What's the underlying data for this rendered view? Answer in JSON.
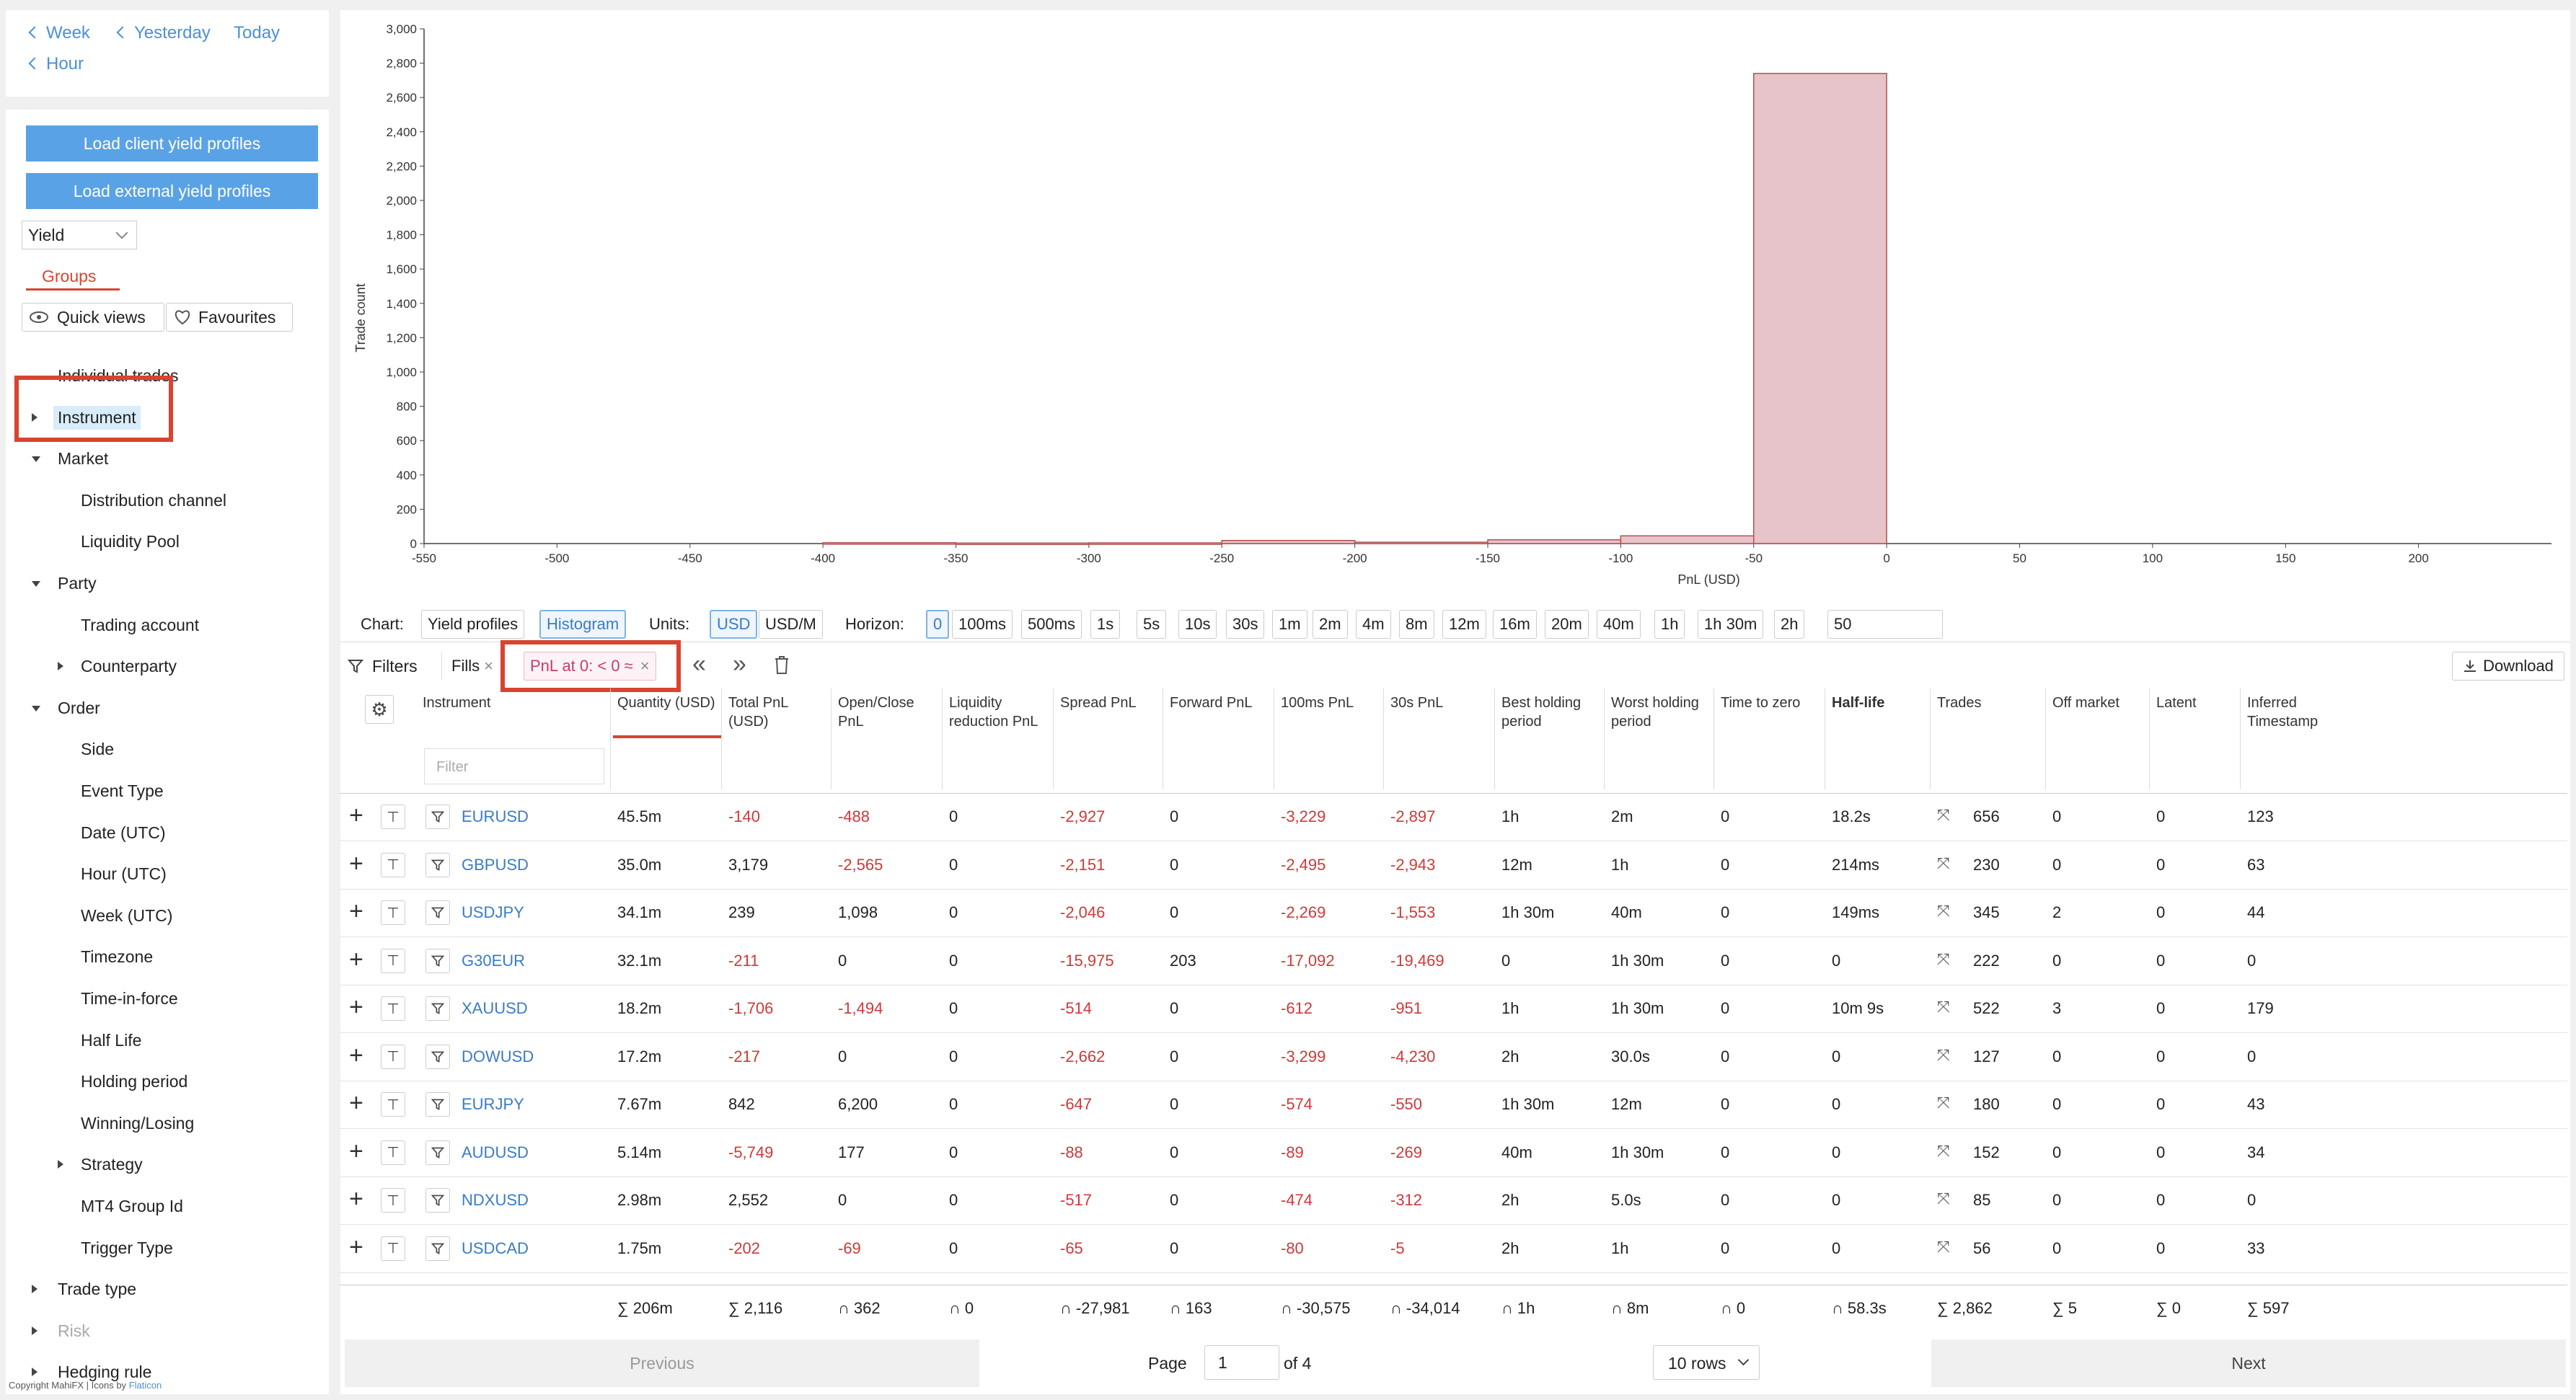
{
  "nav": {
    "week": "Week",
    "yesterday": "Yesterday",
    "today": "Today",
    "hour": "Hour"
  },
  "sidebar": {
    "load_client": "Load client yield profiles",
    "load_external": "Load external yield profiles",
    "metric_select": "Yield",
    "groups_tab": "Groups",
    "quick_views": "Quick views",
    "favourites": "Favourites",
    "tree": [
      {
        "label": "Individual trades"
      },
      {
        "label": "Instrument"
      },
      {
        "label": "Market"
      },
      {
        "label": "Distribution channel"
      },
      {
        "label": "Liquidity Pool"
      },
      {
        "label": "Party"
      },
      {
        "label": "Trading account"
      },
      {
        "label": "Counterparty"
      },
      {
        "label": "Order"
      },
      {
        "label": "Side"
      },
      {
        "label": "Event Type"
      },
      {
        "label": "Date (UTC)"
      },
      {
        "label": "Hour (UTC)"
      },
      {
        "label": "Week (UTC)"
      },
      {
        "label": "Timezone"
      },
      {
        "label": "Time-in-force"
      },
      {
        "label": "Half Life"
      },
      {
        "label": "Holding period"
      },
      {
        "label": "Winning/Losing"
      },
      {
        "label": "Strategy"
      },
      {
        "label": "MT4 Group Id"
      },
      {
        "label": "Trigger Type"
      },
      {
        "label": "Trade type"
      },
      {
        "label": "Risk"
      },
      {
        "label": "Hedging rule"
      }
    ],
    "copyright": "Copyright MahiFX | Icons by",
    "copyright_link": "Flaticon"
  },
  "chart_data": {
    "type": "bar",
    "xlabel": "PnL (USD)",
    "ylabel": "Trade count",
    "xlim": [
      -550,
      250
    ],
    "ylim": [
      0,
      3000
    ],
    "x_ticks": [
      "-550",
      "-500",
      "-450",
      "-400",
      "-350",
      "-300",
      "-250",
      "-200",
      "-150",
      "-100",
      "-50",
      "0",
      "50",
      "100",
      "150",
      "200"
    ],
    "y_ticks": [
      "0",
      "200",
      "400",
      "600",
      "800",
      "1,000",
      "1,200",
      "1,400",
      "1,600",
      "1,800",
      "2,000",
      "2,200",
      "2,400",
      "2,600",
      "2,800",
      "3,000"
    ],
    "bins": [
      {
        "x0": -400,
        "x1": -350,
        "value": 5
      },
      {
        "x0": -350,
        "x1": -300,
        "value": 3
      },
      {
        "x0": -300,
        "x1": -250,
        "value": 4
      },
      {
        "x0": -250,
        "x1": -200,
        "value": 18
      },
      {
        "x0": -200,
        "x1": -150,
        "value": 8
      },
      {
        "x0": -150,
        "x1": -100,
        "value": 22
      },
      {
        "x0": -100,
        "x1": -50,
        "value": 45
      },
      {
        "x0": -50,
        "x1": 0,
        "value": 2740
      }
    ]
  },
  "controls": {
    "chart_label": "Chart:",
    "chart_opts": [
      "Yield profiles",
      "Histogram"
    ],
    "units_label": "Units:",
    "units_opts": [
      "USD",
      "USD/M"
    ],
    "horizon_label": "Horizon:",
    "horizon_opts": [
      "0",
      "100ms",
      "500ms",
      "1s",
      "5s",
      "10s",
      "30s",
      "1m",
      "2m",
      "4m",
      "8m",
      "12m",
      "16m",
      "20m",
      "40m",
      "1h",
      "1h 30m",
      "2h",
      "50"
    ]
  },
  "filters": {
    "label": "Filters",
    "fills": "Fills",
    "pnl_chip": "PnL at 0: < 0 ≈",
    "download": "Download"
  },
  "table": {
    "filter_placeholder": "Filter",
    "headers": [
      {
        "text": "Instrument"
      },
      {
        "text": "Quantity (USD)"
      },
      {
        "text": "Total PnL (USD)"
      },
      {
        "text": "Open/Close PnL"
      },
      {
        "text": "Liquidity reduction PnL"
      },
      {
        "text": "Spread PnL"
      },
      {
        "text": "Forward PnL"
      },
      {
        "text": "100ms PnL"
      },
      {
        "text": "30s PnL"
      },
      {
        "text": "Best holding period"
      },
      {
        "text": "Worst holding period"
      },
      {
        "text": "Time to zero"
      },
      {
        "text": "Half-life"
      },
      {
        "text": "Trades"
      },
      {
        "text": "Off market"
      },
      {
        "text": "Latent"
      },
      {
        "text": "Inferred Timestamp"
      }
    ],
    "rows": [
      [
        "EURUSD",
        "45.5m",
        "-140",
        "-488",
        "0",
        "-2,927",
        "0",
        "-3,229",
        "-2,897",
        "1h",
        "2m",
        "0",
        "18.2s",
        "656",
        "0",
        "0",
        "123"
      ],
      [
        "GBPUSD",
        "35.0m",
        "3,179",
        "-2,565",
        "0",
        "-2,151",
        "0",
        "-2,495",
        "-2,943",
        "12m",
        "1h",
        "0",
        "214ms",
        "230",
        "0",
        "0",
        "63"
      ],
      [
        "USDJPY",
        "34.1m",
        "239",
        "1,098",
        "0",
        "-2,046",
        "0",
        "-2,269",
        "-1,553",
        "1h 30m",
        "40m",
        "0",
        "149ms",
        "345",
        "2",
        "0",
        "44"
      ],
      [
        "G30EUR",
        "32.1m",
        "-211",
        "0",
        "0",
        "-15,975",
        "203",
        "-17,092",
        "-19,469",
        "0",
        "1h 30m",
        "0",
        "0",
        "222",
        "0",
        "0",
        "0"
      ],
      [
        "XAUUSD",
        "18.2m",
        "-1,706",
        "-1,494",
        "0",
        "-514",
        "0",
        "-612",
        "-951",
        "1h",
        "1h 30m",
        "0",
        "10m 9s",
        "522",
        "3",
        "0",
        "179"
      ],
      [
        "DOWUSD",
        "17.2m",
        "-217",
        "0",
        "0",
        "-2,662",
        "0",
        "-3,299",
        "-4,230",
        "2h",
        "30.0s",
        "0",
        "0",
        "127",
        "0",
        "0",
        "0"
      ],
      [
        "EURJPY",
        "7.67m",
        "842",
        "6,200",
        "0",
        "-647",
        "0",
        "-574",
        "-550",
        "1h 30m",
        "12m",
        "0",
        "0",
        "180",
        "0",
        "0",
        "43"
      ],
      [
        "AUDUSD",
        "5.14m",
        "-5,749",
        "177",
        "0",
        "-88",
        "0",
        "-89",
        "-269",
        "40m",
        "1h 30m",
        "0",
        "0",
        "152",
        "0",
        "0",
        "34"
      ],
      [
        "NDXUSD",
        "2.98m",
        "2,552",
        "0",
        "0",
        "-517",
        "0",
        "-474",
        "-312",
        "2h",
        "5.0s",
        "0",
        "0",
        "85",
        "0",
        "0",
        "0"
      ],
      [
        "USDCAD",
        "1.75m",
        "-202",
        "-69",
        "0",
        "-65",
        "0",
        "-80",
        "-5",
        "2h",
        "1h",
        "0",
        "0",
        "56",
        "0",
        "0",
        "33"
      ]
    ],
    "footer": [
      "∑ 206m",
      "∑ 2,116",
      "∩ 362",
      "∩ 0",
      "∩ -27,981",
      "∩ 163",
      "∩ -30,575",
      "∩ -34,014",
      "∩ 1h",
      "∩ 8m",
      "∩ 0",
      "∩ 58.3s",
      "∑ 2,862",
      "∑ 5",
      "∑ 0",
      "∑ 597"
    ]
  },
  "pagination": {
    "previous": "Previous",
    "page_label": "Page",
    "page_value": "1",
    "of": "of 4",
    "rows": "10 rows",
    "next": "Next"
  },
  "colors": {
    "accent": "#4a90d9",
    "negative": "#d0383a",
    "highlight": "#d9442e",
    "bar_fill": "#e6c4c9",
    "bar_stroke": "#b5514f"
  }
}
